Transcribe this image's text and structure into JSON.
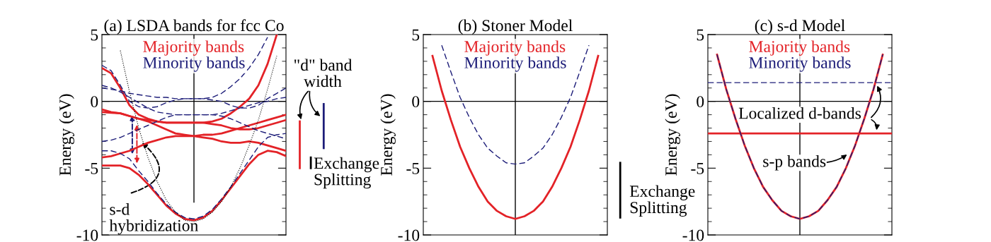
{
  "chart_data": [
    {
      "type": "line",
      "title": "(a) LSDA bands for fcc Co",
      "ylabel": "Energy (eV)",
      "categories": [
        null,
        null,
        null,
        null,
        null,
        null,
        null,
        null,
        null,
        null,
        null,
        null,
        null,
        null,
        null,
        null,
        null,
        null,
        null,
        null,
        null
      ],
      "ylim": [
        -10,
        5
      ],
      "yticks": [
        5,
        {
          "value": 4,
          "label": null
        },
        {
          "value": 3,
          "label": null
        },
        {
          "value": 2,
          "label": null
        },
        {
          "value": 1,
          "label": null
        },
        0,
        {
          "value": -1,
          "label": null
        },
        {
          "value": -2,
          "label": null
        },
        {
          "value": -3,
          "label": null
        },
        {
          "value": -4,
          "label": null
        },
        -5,
        {
          "value": -6,
          "label": null
        },
        {
          "value": -7,
          "label": null
        },
        {
          "value": -8,
          "label": null
        },
        {
          "value": -9,
          "label": null
        },
        -10
      ],
      "tick_labels": "y",
      "legend": "top",
      "series": [
        {
          "name": "Majority bands",
          "color": "#e32227",
          "line_style": "solid",
          "values": [
            2.5,
            2.1,
            1.0,
            -0.3,
            -1.0,
            -1.3,
            -1.5,
            -1.6,
            -1.6,
            -1.6,
            -1.6,
            -1.6,
            -1.5,
            -1.3,
            -0.9,
            -0.4,
            0.2,
            1.2,
            2.8,
            5.0,
            null
          ]
        },
        {
          "color": "#e32227",
          "line_style": "solid",
          "values": [
            -0.6,
            -0.8,
            -0.9,
            -1.1,
            -1.3,
            -1.5,
            -1.8,
            -2.1,
            -2.4,
            -2.5,
            -2.6,
            -2.5,
            -2.5,
            -2.4,
            -2.2,
            -2.0,
            -1.8,
            -1.6,
            -1.4,
            -1.2,
            -1.0
          ]
        },
        {
          "color": "#e32227",
          "line_style": "solid",
          "values": [
            -0.8,
            -0.85,
            -0.9,
            -1.1,
            -1.3,
            -1.4,
            -1.5,
            -1.6,
            -1.6,
            -1.6,
            -1.6,
            -1.6,
            -1.7,
            -1.8,
            -2.0,
            -2.1,
            -2.1,
            -2.0,
            -1.8,
            -1.6,
            -1.4
          ]
        },
        {
          "color": "#e32227",
          "line_style": "solid",
          "values": [
            -4.2,
            -4.1,
            -3.9,
            -3.7,
            -3.4,
            -3.1,
            -2.9,
            -2.7,
            -2.6,
            -2.6,
            -2.6,
            -2.7,
            -2.8,
            -3.0,
            -3.1,
            -3.1,
            -3.0,
            -3.1,
            -3.3,
            -3.5,
            -3.7
          ]
        },
        {
          "color": "#e32227",
          "line_style": "solid",
          "values": [
            -4.8,
            -4.8,
            -4.8,
            -5.0,
            -5.5,
            -6.2,
            -7.0,
            -7.8,
            -8.4,
            -8.8,
            -8.9,
            -8.7,
            -8.2,
            -7.4,
            -6.5,
            -5.6,
            -4.7,
            -4.0,
            -3.7,
            -3.8,
            -4.1
          ]
        },
        {
          "name": "Minority bands",
          "color": "#1c1c78",
          "line_style": "dashed",
          "values": [
            2.7,
            2.3,
            1.2,
            0.0,
            -0.4,
            -0.5,
            -0.4,
            -0.1,
            0.1,
            0.2,
            0.2,
            0.2,
            0.3,
            0.6,
            1.1,
            1.7,
            2.5,
            3.5,
            4.8,
            null,
            null
          ]
        },
        {
          "color": "#1c1c78",
          "line_style": "dashed",
          "values": [
            1.2,
            1.0,
            0.7,
            0.3,
            -0.1,
            -0.5,
            -0.8,
            -0.9,
            -1.0,
            -1.0,
            -1.0,
            -1.0,
            -1.0,
            -1.1,
            -1.3,
            -1.6,
            -1.9,
            -2.2,
            -2.4,
            -2.6,
            -2.8
          ]
        },
        {
          "color": "#1c1c78",
          "line_style": "dashed",
          "values": [
            1.0,
            0.9,
            0.8,
            0.6,
            0.5,
            0.4,
            0.3,
            0.3,
            0.2,
            0.2,
            0.2,
            0.2,
            0.1,
            0.0,
            -0.3,
            -0.5,
            -0.5,
            -0.3,
            0.2,
            0.6,
            1.0
          ]
        },
        {
          "color": "#1c1c78",
          "line_style": "dashed",
          "values": [
            -3.0,
            -2.9,
            -2.7,
            -2.4,
            -2.1,
            -1.8,
            -1.5,
            -1.2,
            -1.0,
            -1.0,
            -1.0,
            -1.0,
            -1.0,
            -0.9,
            -0.7,
            -0.5,
            -0.3,
            -0.1,
            0.0,
            0.2,
            0.3
          ]
        },
        {
          "color": "#1c1c78",
          "line_style": "dashed",
          "values": [
            -3.7,
            -3.7,
            -3.9,
            -4.3,
            -5.2,
            -6.0,
            -6.9,
            -7.7,
            -8.3,
            -8.7,
            -8.8,
            -8.6,
            -8.1,
            -7.3,
            -6.4,
            -5.4,
            -4.4,
            -3.4,
            -2.7,
            -2.5,
            -2.4
          ]
        },
        {
          "color": "#000000",
          "line_style": "dotted",
          "values": [
            null,
            null,
            3.8,
            0.7,
            -2.0,
            -4.2,
            -6.0,
            -7.4,
            -8.3,
            -8.9,
            -9.0,
            -8.8,
            -8.3,
            -7.5,
            -6.4,
            -5.0,
            -3.3,
            -1.4,
            0.9,
            3.4,
            null
          ]
        }
      ],
      "ref_lines": [
        {
          "axis": "y",
          "value": 0,
          "color": "#000000"
        }
      ],
      "annotations": [
        "\"d\" band\nwidth",
        "Exchange\nSplitting",
        "s-d\nhybridization"
      ]
    },
    {
      "type": "line",
      "title": "(b) Stoner Model",
      "ylabel": "Energy (eV)",
      "categories": [
        null,
        null,
        null,
        null,
        null,
        null,
        null,
        null,
        null,
        null,
        null,
        null,
        null,
        null,
        null,
        null,
        null,
        null,
        null,
        null,
        null
      ],
      "ylim": [
        -10,
        5
      ],
      "yticks": [
        5,
        {
          "value": 4,
          "label": null
        },
        {
          "value": 3,
          "label": null
        },
        {
          "value": 2,
          "label": null
        },
        {
          "value": 1,
          "label": null
        },
        0,
        {
          "value": -1,
          "label": null
        },
        {
          "value": -2,
          "label": null
        },
        {
          "value": -3,
          "label": null
        },
        {
          "value": -4,
          "label": null
        },
        -5,
        {
          "value": -6,
          "label": null
        },
        {
          "value": -7,
          "label": null
        },
        {
          "value": -8,
          "label": null
        },
        {
          "value": -9,
          "label": null
        },
        -10
      ],
      "tick_labels": "y",
      "legend": "top",
      "series": [
        {
          "name": "Majority bands",
          "color": "#e32227",
          "line_style": "solid",
          "values": [
            null,
            3.4,
            0.8,
            -1.4,
            -3.4,
            -5.0,
            -6.4,
            -7.5,
            -8.2,
            -8.6,
            -8.8,
            -8.6,
            -8.2,
            -7.5,
            -6.4,
            -5.0,
            -3.4,
            -1.4,
            0.8,
            3.4,
            null
          ]
        },
        {
          "name": "Minority bands",
          "color": "#1c1c78",
          "line_style": "dashed",
          "values": [
            null,
            null,
            4.2,
            2.2,
            0.3,
            -1.2,
            -2.5,
            -3.5,
            -4.1,
            -4.6,
            -4.7,
            -4.6,
            -4.1,
            -3.5,
            -2.5,
            -1.2,
            0.3,
            2.2,
            4.2,
            null,
            null
          ]
        }
      ],
      "ref_lines": [
        {
          "axis": "y",
          "value": 0,
          "color": "#000000"
        }
      ],
      "annotations": [
        "Exchange\nSplitting"
      ]
    },
    {
      "type": "line",
      "title": "(c) s-d Model",
      "ylabel": "Energy (eV)",
      "categories": [
        null,
        null,
        null,
        null,
        null,
        null,
        null,
        null,
        null,
        null,
        null,
        null,
        null,
        null,
        null,
        null,
        null,
        null,
        null,
        null,
        null
      ],
      "ylim": [
        -10,
        5
      ],
      "yticks": [
        5,
        {
          "value": 4,
          "label": null
        },
        {
          "value": 3,
          "label": null
        },
        {
          "value": 2,
          "label": null
        },
        {
          "value": 1,
          "label": null
        },
        0,
        {
          "value": -1,
          "label": null
        },
        {
          "value": -2,
          "label": null
        },
        {
          "value": -3,
          "label": null
        },
        {
          "value": -4,
          "label": null
        },
        -5,
        {
          "value": -6,
          "label": null
        },
        {
          "value": -7,
          "label": null
        },
        {
          "value": -8,
          "label": null
        },
        {
          "value": -9,
          "label": null
        },
        -10
      ],
      "tick_labels": "y",
      "legend": "top",
      "series": [
        {
          "name": "Majority bands",
          "color": "#e32227",
          "line_style": "solid",
          "values": [
            null,
            3.5,
            0.9,
            -1.3,
            -3.3,
            -5.0,
            -6.4,
            -7.4,
            -8.2,
            -8.6,
            -8.8,
            -8.6,
            -8.2,
            -7.4,
            -6.4,
            -5.0,
            -3.3,
            -1.3,
            0.9,
            3.5,
            null
          ]
        },
        {
          "color": "#e32227",
          "line_style": "solid",
          "values": [
            -2.4,
            -2.4,
            -2.4,
            -2.4,
            -2.4,
            -2.4,
            -2.4,
            -2.4,
            -2.4,
            -2.4,
            -2.4,
            -2.4,
            -2.4,
            -2.4,
            -2.4,
            -2.4,
            -2.4,
            -2.4,
            -2.4,
            -2.4,
            -2.4
          ]
        },
        {
          "name": "Minority bands",
          "color": "#1c1c78",
          "line_style": "dashed",
          "values": [
            null,
            3.5,
            0.9,
            -1.3,
            -3.3,
            -5.0,
            -6.4,
            -7.4,
            -8.2,
            -8.6,
            -8.8,
            -8.6,
            -8.2,
            -7.4,
            -6.4,
            -5.0,
            -3.3,
            -1.3,
            0.9,
            3.5,
            null
          ]
        },
        {
          "color": "#1c1c78",
          "line_style": "dashed",
          "values": [
            1.4,
            1.4,
            1.4,
            1.4,
            1.4,
            1.4,
            1.4,
            1.4,
            1.4,
            1.4,
            1.4,
            1.4,
            1.4,
            1.4,
            1.4,
            1.4,
            1.4,
            1.4,
            1.4,
            1.4,
            1.4
          ]
        }
      ],
      "ref_lines": [
        {
          "axis": "y",
          "value": 0,
          "color": "#000000"
        }
      ],
      "annotations": [
        "Localized d-bands",
        "s-p bands"
      ]
    }
  ]
}
